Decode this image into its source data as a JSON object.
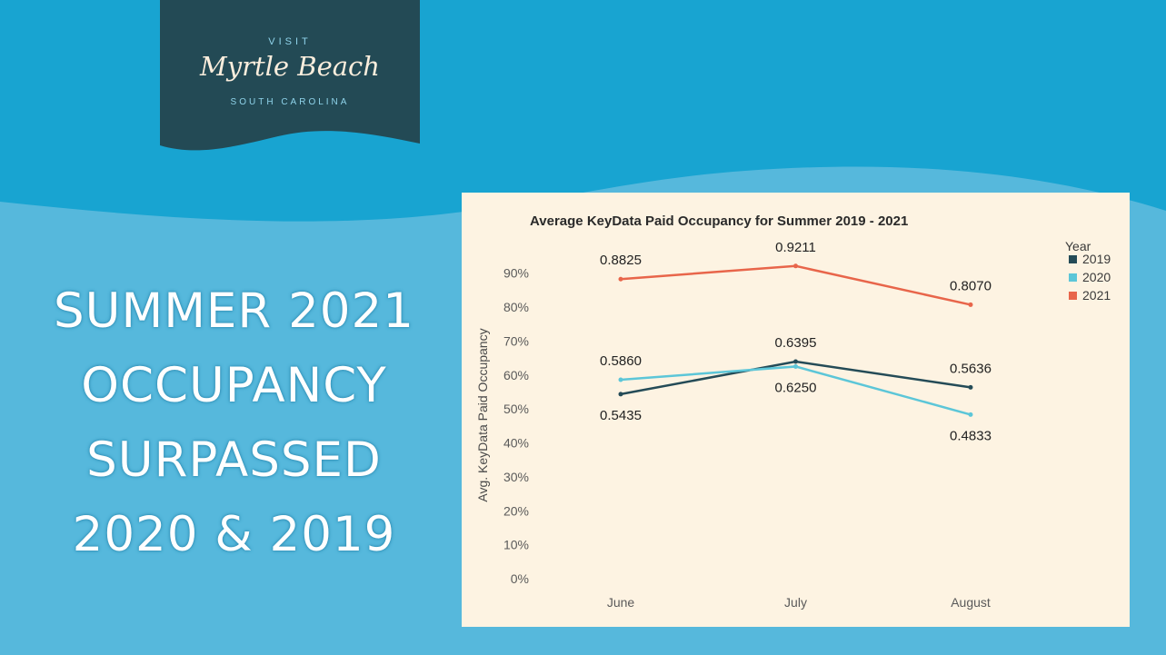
{
  "logo": {
    "visit": "VISIT",
    "name": "Myrtle Beach",
    "state": "SOUTH CAROLINA"
  },
  "headline": {
    "lines": [
      "SUMMER 2021",
      "OCCUPANCY",
      "SURPASSED",
      "2020 & 2019"
    ]
  },
  "colors": {
    "background_dark": "#18a4d1",
    "background_light": "#56b8dc",
    "logo_panel": "#234a55",
    "card": "#fdf3e2"
  },
  "chart_data": {
    "type": "line",
    "title": "Average KeyData Paid Occupancy for Summer 2019 - 2021",
    "xlabel": "",
    "ylabel": "Avg. KeyData Paid Occupancy",
    "categories": [
      "June",
      "July",
      "August"
    ],
    "ylim": [
      0,
      0.95
    ],
    "yticks": [
      0,
      0.1,
      0.2,
      0.3,
      0.4,
      0.5,
      0.6,
      0.7,
      0.8,
      0.9
    ],
    "ytick_labels": [
      "0%",
      "10%",
      "20%",
      "30%",
      "40%",
      "50%",
      "60%",
      "70%",
      "80%",
      "90%"
    ],
    "grid": false,
    "legend": {
      "title": "Year",
      "placement": "top-right"
    },
    "series": [
      {
        "name": "2019",
        "color": "#244b57",
        "values": [
          0.5435,
          0.6395,
          0.5636
        ],
        "labels": [
          "0.5435",
          "0.6395",
          "0.5636"
        ]
      },
      {
        "name": "2020",
        "color": "#5cc6d8",
        "values": [
          0.586,
          0.625,
          0.4833
        ],
        "labels": [
          "0.5860",
          "0.6250",
          "0.4833"
        ]
      },
      {
        "name": "2021",
        "color": "#e8654a",
        "values": [
          0.8825,
          0.9211,
          0.807
        ],
        "labels": [
          "0.8825",
          "0.9211",
          "0.8070"
        ]
      }
    ]
  }
}
